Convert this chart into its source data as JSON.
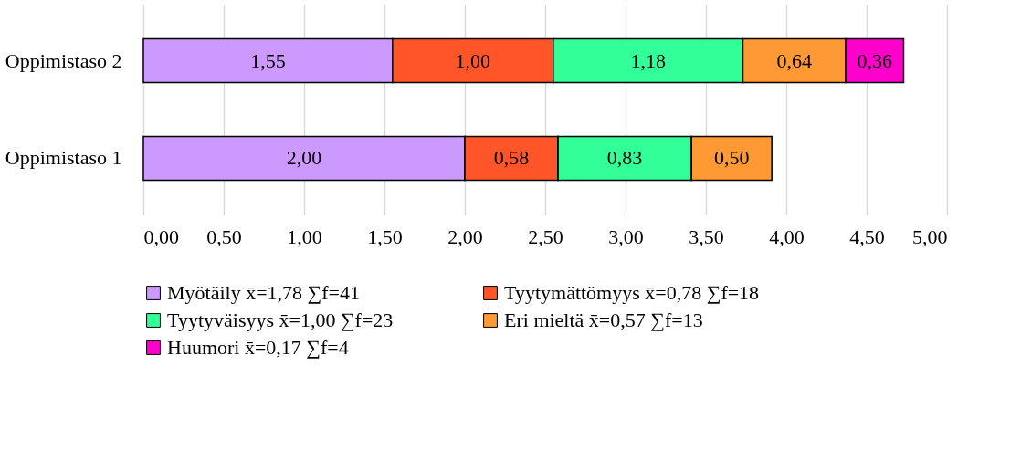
{
  "chart_data": {
    "type": "bar",
    "orientation": "horizontal",
    "stacked": true,
    "categories": [
      "Oppimistaso 2",
      "Oppimistaso 1"
    ],
    "series": [
      {
        "name": "Myötäily x̄=1,78  ∑f=41",
        "color": "#cc99ff",
        "values": [
          1.55,
          2.0
        ],
        "value_labels": [
          "1,55",
          "2,00"
        ]
      },
      {
        "name": "Tyytymättömyys x̄=0,78  ∑f=18",
        "color": "#ff5529",
        "values": [
          1.0,
          0.58
        ],
        "value_labels": [
          "1,00",
          "0,58"
        ]
      },
      {
        "name": "Tyytyväisyys x̄=1,00  ∑f=23",
        "color": "#33ff99",
        "values": [
          1.18,
          0.83
        ],
        "value_labels": [
          "1,18",
          "0,83"
        ]
      },
      {
        "name": "Eri mieltä x̄=0,57  ∑f=13",
        "color": "#ff9933",
        "values": [
          0.64,
          0.5
        ],
        "value_labels": [
          "0,64",
          "0,50"
        ]
      },
      {
        "name": "Huumori x̄=0,17  ∑f=4",
        "color": "#ff00cc",
        "values": [
          0.36,
          null
        ],
        "value_labels": [
          "0,36",
          null
        ]
      }
    ],
    "xlim": [
      0,
      5
    ],
    "xticks": [
      {
        "value": 0,
        "label": "0,00"
      },
      {
        "value": 0.5,
        "label": "0,50"
      },
      {
        "value": 1,
        "label": "1,00"
      },
      {
        "value": 1.5,
        "label": "1,50"
      },
      {
        "value": 2,
        "label": "2,00"
      },
      {
        "value": 2.5,
        "label": "2,50"
      },
      {
        "value": 3,
        "label": "3,00"
      },
      {
        "value": 3.5,
        "label": "3,50"
      },
      {
        "value": 4,
        "label": "4,00"
      },
      {
        "value": 4.5,
        "label": "4,50"
      },
      {
        "value": 5,
        "label": "5,00"
      }
    ],
    "grid": "x",
    "legend": "bottom"
  }
}
